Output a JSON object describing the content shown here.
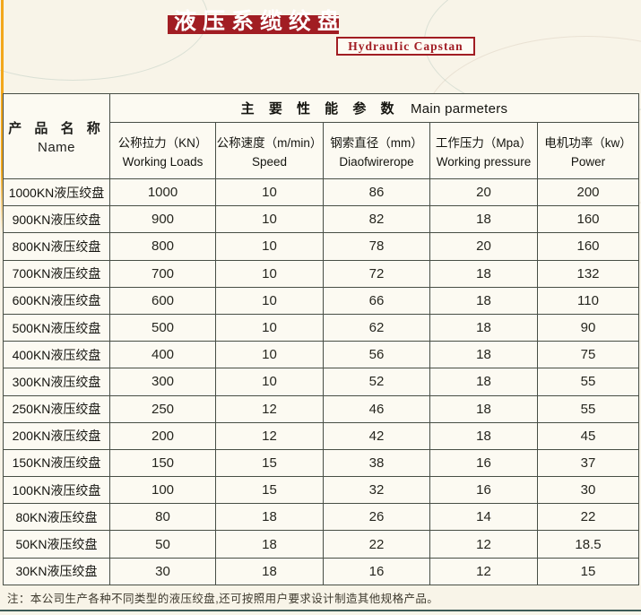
{
  "page": {
    "title_zh": "液压系缆绞盘",
    "subtitle_en": "HydrauIic Capstan",
    "note": "注：本公司生产各种不同类型的液压绞盘,还可按照用户要求设计制造其他规格产品。"
  },
  "colors": {
    "banner_red": "#a11d23",
    "gold_stripe": "#f2a71c",
    "page_bg": "#f8f4e8",
    "border": "#474e45",
    "bottom_line": "#3e5a56"
  },
  "table": {
    "name_header": {
      "zh": "产 品 名 称",
      "en": "Name"
    },
    "group_header": {
      "zh": "主 要 性 能 参 数",
      "en": "Main parmeters"
    },
    "columns": [
      {
        "zh": "公称拉力（KN）",
        "en": "Working Loads"
      },
      {
        "zh": "公称速度（m/min）",
        "en": "Speed"
      },
      {
        "zh": "钢索直径（mm）",
        "en": "Diaofwirerope"
      },
      {
        "zh": "工作压力（Mpa）",
        "en": "Working pressure"
      },
      {
        "zh": "电机功率（kw）",
        "en": "Power"
      }
    ],
    "rows": [
      {
        "name": "1000KN液压绞盘",
        "values": [
          "1000",
          "10",
          "86",
          "20",
          "200"
        ]
      },
      {
        "name": "900KN液压绞盘",
        "values": [
          "900",
          "10",
          "82",
          "18",
          "160"
        ]
      },
      {
        "name": "800KN液压绞盘",
        "values": [
          "800",
          "10",
          "78",
          "20",
          "160"
        ]
      },
      {
        "name": "700KN液压绞盘",
        "values": [
          "700",
          "10",
          "72",
          "18",
          "132"
        ]
      },
      {
        "name": "600KN液压绞盘",
        "values": [
          "600",
          "10",
          "66",
          "18",
          "110"
        ]
      },
      {
        "name": "500KN液压绞盘",
        "values": [
          "500",
          "10",
          "62",
          "18",
          "90"
        ]
      },
      {
        "name": "400KN液压绞盘",
        "values": [
          "400",
          "10",
          "56",
          "18",
          "75"
        ]
      },
      {
        "name": "300KN液压绞盘",
        "values": [
          "300",
          "10",
          "52",
          "18",
          "55"
        ]
      },
      {
        "name": "250KN液压绞盘",
        "values": [
          "250",
          "12",
          "46",
          "18",
          "55"
        ]
      },
      {
        "name": "200KN液压绞盘",
        "values": [
          "200",
          "12",
          "42",
          "18",
          "45"
        ]
      },
      {
        "name": "150KN液压绞盘",
        "values": [
          "150",
          "15",
          "38",
          "16",
          "37"
        ]
      },
      {
        "name": "100KN液压绞盘",
        "values": [
          "100",
          "15",
          "32",
          "16",
          "30"
        ]
      },
      {
        "name": "80KN液压绞盘",
        "values": [
          "80",
          "18",
          "26",
          "14",
          "22"
        ]
      },
      {
        "name": "50KN液压绞盘",
        "values": [
          "50",
          "18",
          "22",
          "12",
          "18.5"
        ]
      },
      {
        "name": "30KN液压绞盘",
        "values": [
          "30",
          "18",
          "16",
          "12",
          "15"
        ]
      }
    ]
  }
}
